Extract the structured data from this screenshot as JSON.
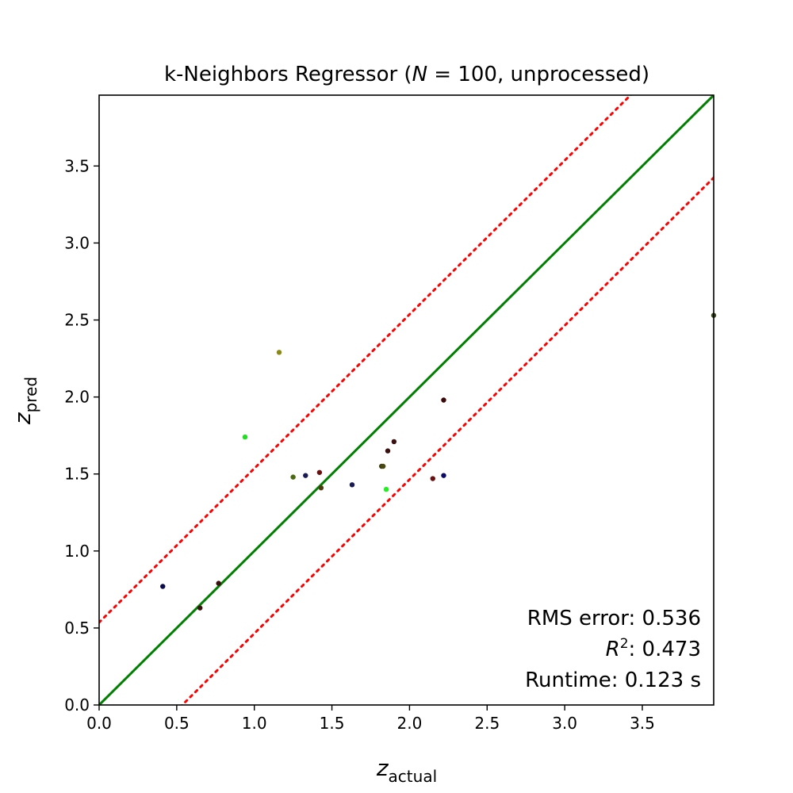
{
  "chart_data": {
    "type": "scatter",
    "title": {
      "prefix": "k-Neighbors Regressor (",
      "variable": "N",
      "suffix": " = 100, unprocessed)"
    },
    "xlabel": {
      "base": "z",
      "sub": "actual"
    },
    "ylabel": {
      "base": "z",
      "sub": "pred"
    },
    "xlim": [
      0,
      3.96
    ],
    "ylim": [
      0,
      3.96
    ],
    "xticks": [
      "0.0",
      "0.5",
      "1.0",
      "1.5",
      "2.0",
      "2.5",
      "3.0",
      "3.5"
    ],
    "yticks": [
      "0.0",
      "0.5",
      "1.0",
      "1.5",
      "2.0",
      "2.5",
      "3.0",
      "3.5"
    ],
    "grid": false,
    "reference_lines": [
      {
        "kind": "identity",
        "intercept": 0,
        "slope": 1,
        "color": "#008000",
        "style": "solid"
      },
      {
        "kind": "upper-bound",
        "intercept": 0.536,
        "slope": 1,
        "color": "#ff0000",
        "style": "dotted"
      },
      {
        "kind": "lower-bound",
        "intercept": -0.536,
        "slope": 1,
        "color": "#ff0000",
        "style": "dotted"
      }
    ],
    "points": [
      {
        "x": 0.41,
        "y": 0.77,
        "color": "#0b0b4a"
      },
      {
        "x": 0.65,
        "y": 0.63,
        "color": "#3a1010"
      },
      {
        "x": 0.77,
        "y": 0.79,
        "color": "#3c0f0f"
      },
      {
        "x": 0.94,
        "y": 1.74,
        "color": "#22dd22"
      },
      {
        "x": 1.16,
        "y": 2.29,
        "color": "#8a8a10"
      },
      {
        "x": 1.25,
        "y": 1.48,
        "color": "#4a6a10"
      },
      {
        "x": 1.33,
        "y": 1.49,
        "color": "#1a1a55"
      },
      {
        "x": 1.42,
        "y": 1.51,
        "color": "#6a1010"
      },
      {
        "x": 1.43,
        "y": 1.41,
        "color": "#4a3a10"
      },
      {
        "x": 1.63,
        "y": 1.43,
        "color": "#1a1a55"
      },
      {
        "x": 1.82,
        "y": 1.55,
        "color": "#3a3a10"
      },
      {
        "x": 1.83,
        "y": 1.55,
        "color": "#4a4a10"
      },
      {
        "x": 1.85,
        "y": 1.4,
        "color": "#22ee22"
      },
      {
        "x": 1.86,
        "y": 1.65,
        "color": "#3a1010"
      },
      {
        "x": 1.9,
        "y": 1.71,
        "color": "#3a1010"
      },
      {
        "x": 2.15,
        "y": 1.47,
        "color": "#6a1010"
      },
      {
        "x": 2.22,
        "y": 1.98,
        "color": "#3a0808"
      },
      {
        "x": 2.22,
        "y": 1.49,
        "color": "#0b0b66"
      },
      {
        "x": 3.96,
        "y": 2.53,
        "color": "#3a4a10"
      }
    ],
    "annotations": {
      "rms": "RMS error: 0.536",
      "r2_base": "R",
      "r2_exp": "2",
      "r2_value": ": 0.473",
      "runtime": "Runtime: 0.123 s"
    }
  }
}
